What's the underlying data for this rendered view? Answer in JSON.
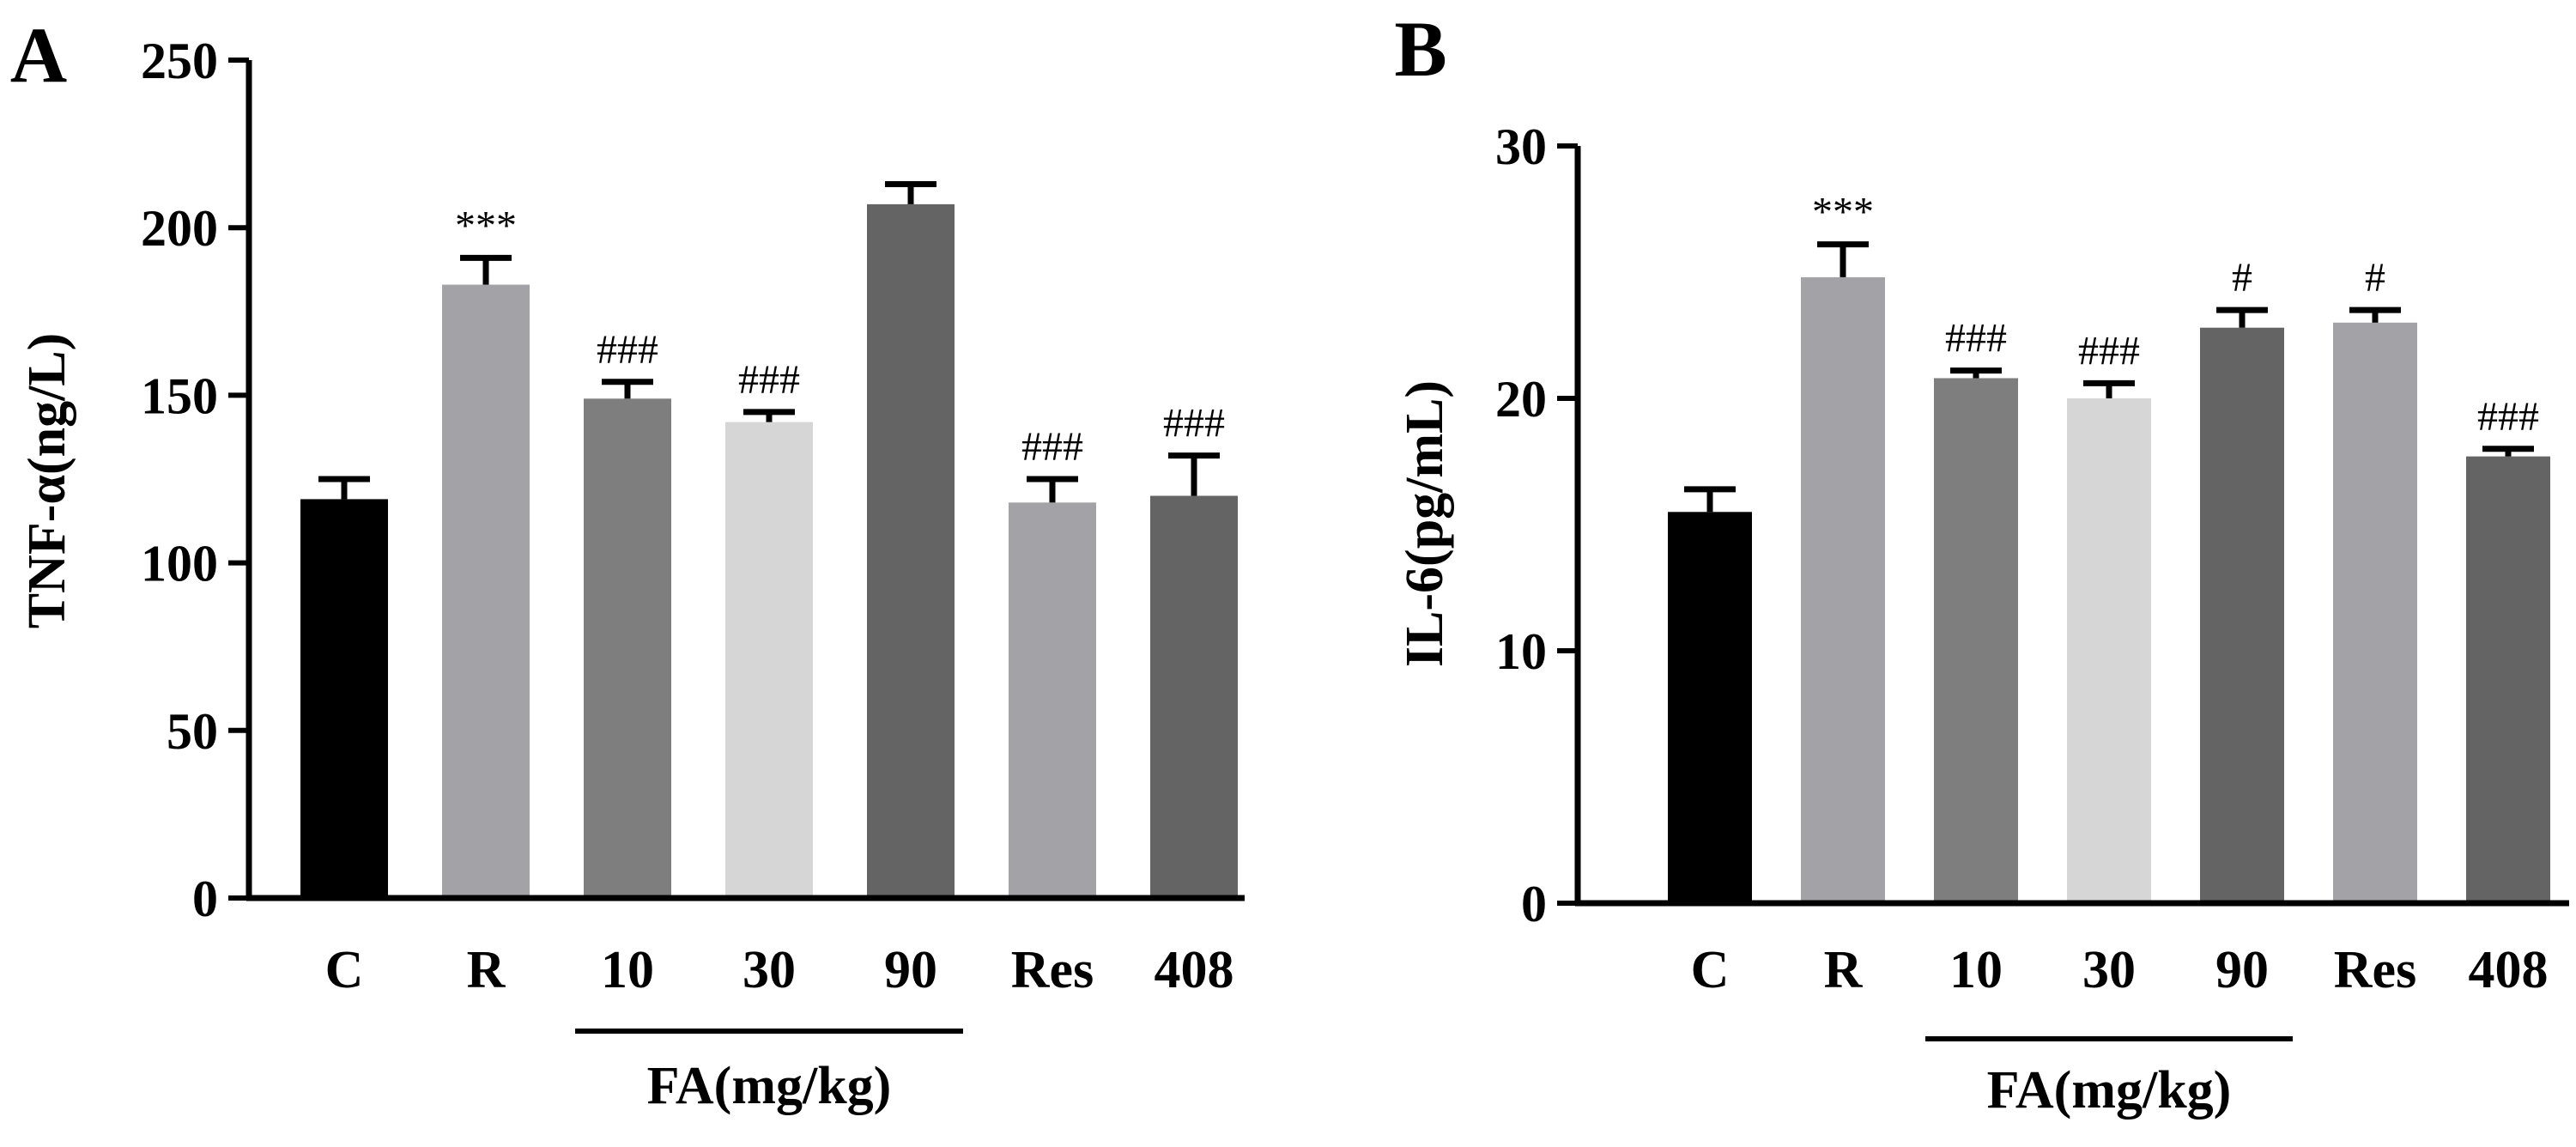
{
  "chart_data": [
    {
      "panel_label": "A",
      "type": "bar",
      "ylabel": "TNF-α(ng/L)",
      "ylim": [
        0,
        250
      ],
      "yticks": [
        0,
        50,
        100,
        150,
        200,
        250
      ],
      "ytick_labels": [
        "0",
        "50",
        "100",
        "150",
        "200",
        "250"
      ],
      "categories": [
        "C",
        "R",
        "10",
        "30",
        "90",
        "Res",
        "408"
      ],
      "values": [
        119,
        183,
        149,
        142,
        207,
        118,
        120
      ],
      "errors": [
        6,
        8,
        5,
        3,
        6,
        7,
        12
      ],
      "significance": [
        "",
        "***",
        "###",
        "###",
        "",
        "###",
        "###"
      ],
      "bar_colors": [
        "#000000",
        "#a3a3a7",
        "#7e7e7e",
        "#d6d6d6",
        "#646464",
        "#a3a3a7",
        "#646464"
      ],
      "group_label": "FA(mg/kg)",
      "group_range": [
        2,
        4
      ]
    },
    {
      "panel_label": "B",
      "type": "bar",
      "ylabel": "IL-6(pg/mL)",
      "ylim": [
        0,
        30
      ],
      "yticks": [
        0,
        10,
        20,
        30
      ],
      "ytick_labels": [
        "0",
        "10",
        "20",
        "30"
      ],
      "categories": [
        "C",
        "R",
        "10",
        "30",
        "90",
        "Res",
        "408"
      ],
      "values": [
        15.5,
        24.8,
        20.8,
        20.0,
        22.8,
        23.0,
        17.7
      ],
      "errors": [
        0.9,
        1.3,
        0.3,
        0.6,
        0.7,
        0.5,
        0.3
      ],
      "significance": [
        "",
        "***",
        "###",
        "###",
        "#",
        "#",
        "###"
      ],
      "bar_colors": [
        "#000000",
        "#a3a3a7",
        "#7e7e7e",
        "#d6d6d6",
        "#646464",
        "#a3a3a7",
        "#646464"
      ],
      "group_label": "FA(mg/kg)",
      "group_range": [
        2,
        4
      ]
    }
  ]
}
